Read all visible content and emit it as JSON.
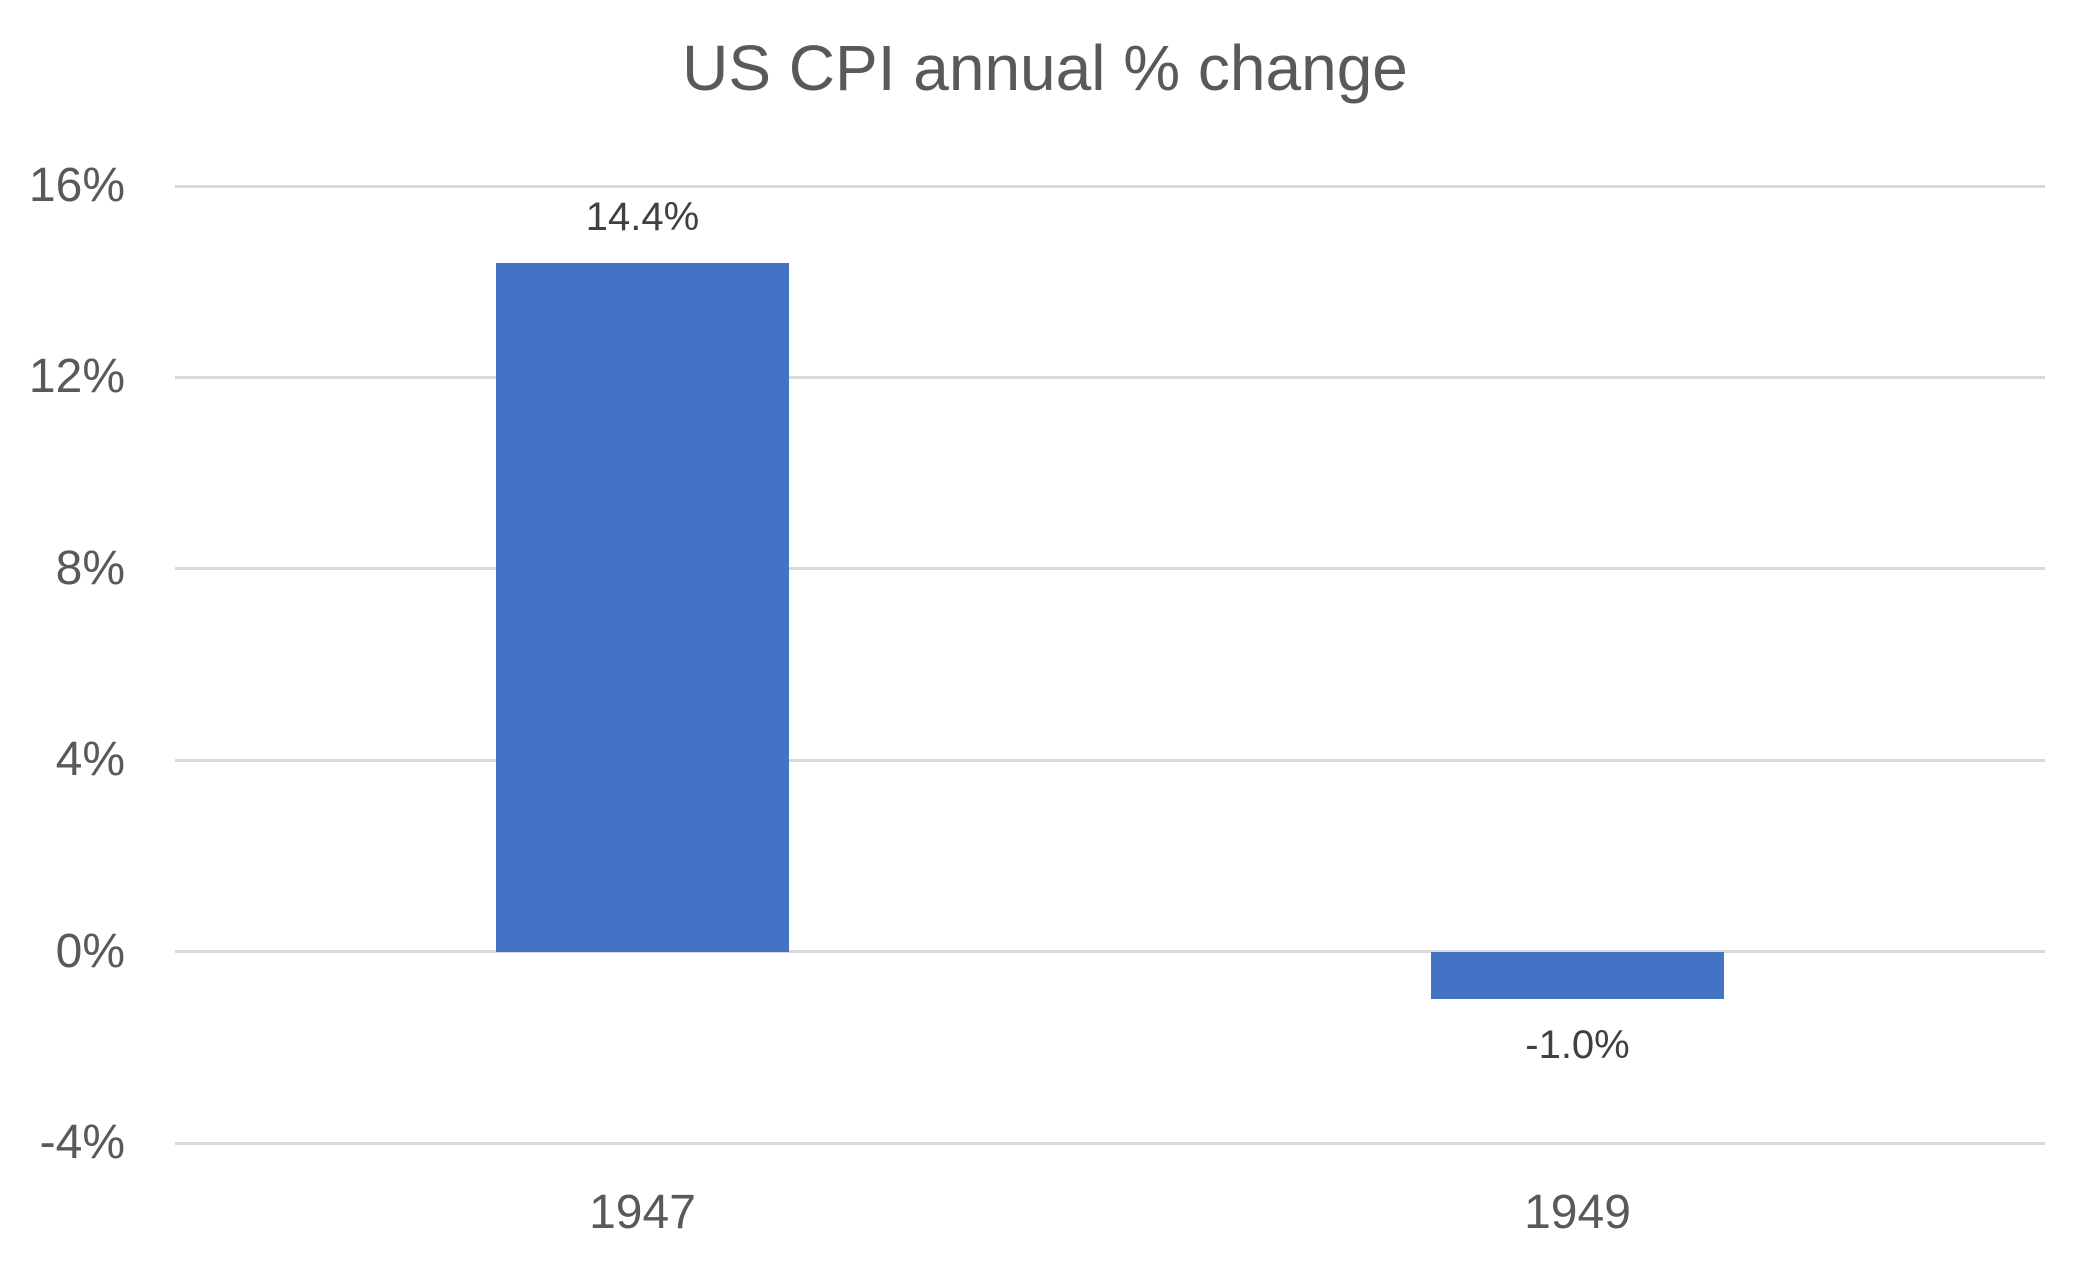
{
  "chart": {
    "background_color": "#ffffff",
    "bar_color": "#4472C4",
    "gridline_color": "#D9D9D9",
    "axis_text_color": "#595959",
    "title_color": "#595959",
    "data_label_color": "#404040"
  },
  "chart_data": {
    "type": "bar",
    "title": "US CPI annual % change",
    "categories": [
      "1947",
      "1949"
    ],
    "values": [
      14.4,
      -1.0
    ],
    "data_labels": [
      "14.4%",
      "-1.0%"
    ],
    "xlabel": "",
    "ylabel": "",
    "ylim": [
      -4,
      16
    ],
    "ytick_step": 4,
    "yticks": [
      {
        "value": 16,
        "label": "16%"
      },
      {
        "value": 12,
        "label": "12%"
      },
      {
        "value": 8,
        "label": "8%"
      },
      {
        "value": 4,
        "label": "4%"
      },
      {
        "value": 0,
        "label": "0%"
      },
      {
        "value": -4,
        "label": "-4%"
      }
    ],
    "grid": true,
    "legend": false,
    "series_color": "#4472C4"
  }
}
